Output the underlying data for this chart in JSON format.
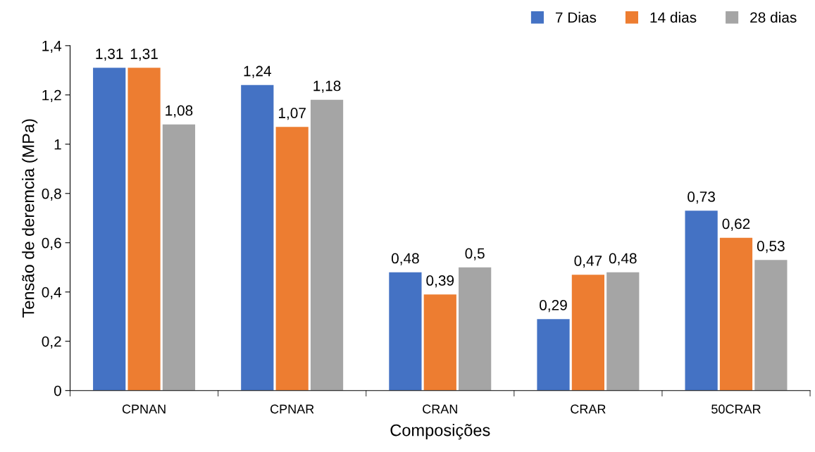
{
  "chart_data": {
    "type": "bar",
    "xlabel": "Composições",
    "ylabel": "Tensão de deremcia (MPa)",
    "categories": [
      "CPNAN",
      "CPNAR",
      "CRAN",
      "CRAR",
      "50CRAR"
    ],
    "series": [
      {
        "name": "7 Dias",
        "color": "#4472c4",
        "values": [
          1.31,
          1.24,
          0.48,
          0.29,
          0.73
        ],
        "value_labels": [
          "1,31",
          "1,24",
          "0,48",
          "0,29",
          "0,73"
        ]
      },
      {
        "name": "14 dias",
        "color": "#ed7d31",
        "values": [
          1.31,
          1.07,
          0.39,
          0.47,
          0.62
        ],
        "value_labels": [
          "1,31",
          "1,07",
          "0,39",
          "0,47",
          "0,62"
        ]
      },
      {
        "name": "28 dias",
        "color": "#a5a5a5",
        "values": [
          1.08,
          1.18,
          0.5,
          0.48,
          0.53
        ],
        "value_labels": [
          "1,08",
          "1,18",
          "0,5",
          "0,48",
          "0,53"
        ]
      }
    ],
    "ylim": [
      0,
      1.4
    ],
    "yticks": [
      0,
      {
        "value": 0.2,
        "label": "0,2"
      },
      {
        "value": 0.4,
        "label": "0,4"
      },
      {
        "value": 0.6,
        "label": "0,6"
      },
      {
        "value": 0.8,
        "label": "0,8"
      },
      1,
      {
        "value": 1.2,
        "label": "1,2"
      },
      {
        "value": 1.4,
        "label": "1,4"
      }
    ],
    "grid": false,
    "legend": "top right"
  }
}
